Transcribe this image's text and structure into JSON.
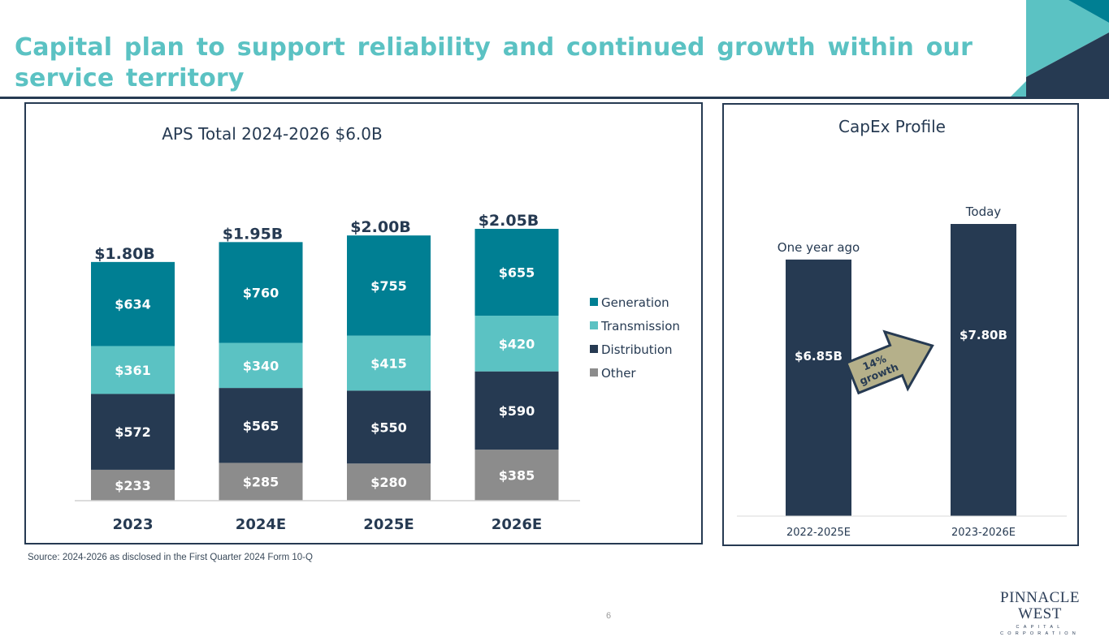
{
  "page": {
    "title": "Capital plan to support reliability and continued growth within our service territory",
    "source_note": "Source: 2024-2026 as disclosed in the First Quarter 2024 Form 10-Q",
    "page_number": "6",
    "logo": {
      "main": "PINNACLE WEST",
      "sub": "CAPITAL CORPORATION"
    },
    "colors": {
      "title": "#5bc2c3",
      "navy": "#263a52",
      "teal": "#007f93",
      "light_teal": "#5bc2c3",
      "gray": "#8c8c8c",
      "arrow": "#b5b08a"
    }
  },
  "chart_data": [
    {
      "type": "bar",
      "stacked": true,
      "title": "APS Total 2024-2026  $6.0B",
      "xlabel": "",
      "ylabel": "",
      "units": "$M",
      "categories": [
        "2023",
        "2024E",
        "2025E",
        "2026E"
      ],
      "series": [
        {
          "name": "Other",
          "color": "#8c8c8c",
          "values": [
            233,
            285,
            280,
            385
          ],
          "labels": [
            "$233",
            "$285",
            "$280",
            "$385"
          ]
        },
        {
          "name": "Distribution",
          "color": "#263a52",
          "values": [
            572,
            565,
            550,
            590
          ],
          "labels": [
            "$572",
            "$565",
            "$550",
            "$590"
          ]
        },
        {
          "name": "Transmission",
          "color": "#5bc2c3",
          "values": [
            361,
            340,
            415,
            420
          ],
          "labels": [
            "$361",
            "$340",
            "$415",
            "$420"
          ]
        },
        {
          "name": "Generation",
          "color": "#007f93",
          "values": [
            634,
            760,
            755,
            655
          ],
          "labels": [
            "$634",
            "$760",
            "$755",
            "$655"
          ]
        }
      ],
      "totals": [
        "$1.80B",
        "$1.95B",
        "$2.00B",
        "$2.05B"
      ],
      "legend": {
        "position": "right",
        "entries": [
          "Generation",
          "Transmission",
          "Distribution",
          "Other"
        ]
      },
      "ylim": [
        0,
        2100
      ],
      "grid": false
    },
    {
      "type": "bar",
      "title": "CapEx Profile",
      "units": "$B",
      "categories": [
        "2022-2025E",
        "2023-2026E"
      ],
      "values": [
        6.85,
        7.8
      ],
      "value_labels": [
        "$6.85B",
        "$7.80B"
      ],
      "bar_annotations": [
        "One year ago",
        "Today"
      ],
      "annotation": "14% growth",
      "annotation_lines": [
        "14%",
        "growth"
      ],
      "ylim": [
        0,
        7.8
      ],
      "grid": false,
      "legend": "none"
    }
  ]
}
